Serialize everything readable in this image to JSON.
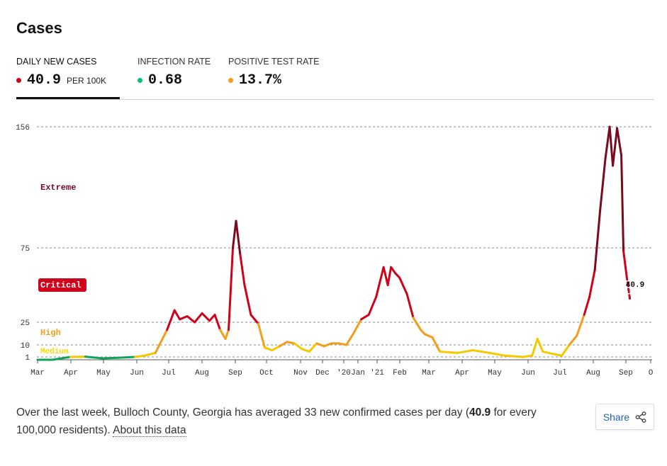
{
  "header": {
    "title": "Cases"
  },
  "tabs": [
    {
      "label": "DAILY NEW CASES",
      "value": "40.9",
      "unit": "PER 100K",
      "dot_color": "#d0021b",
      "active": true
    },
    {
      "label": "INFECTION RATE",
      "value": "0.68",
      "unit": "",
      "dot_color": "#00c474",
      "active": false
    },
    {
      "label": "POSITIVE TEST RATE",
      "value": "13.7%",
      "unit": "",
      "dot_color": "#f29d1b",
      "active": false
    }
  ],
  "chart_data": {
    "type": "line",
    "y_ticks": [
      1,
      10,
      25,
      75,
      156
    ],
    "ylim": [
      0,
      156
    ],
    "x_ticks": [
      "Mar",
      "Apr",
      "May",
      "Jun",
      "Jul",
      "Aug",
      "Sep",
      "Oct",
      "Nov",
      "Dec",
      "'20",
      "Jan",
      "'21",
      "Feb",
      "Mar",
      "Apr",
      "May",
      "Jun",
      "Jul",
      "Aug",
      "Sep",
      "O"
    ],
    "levels": [
      {
        "name": "Extreme",
        "color": "#7a0a1f"
      },
      {
        "name": "Critical",
        "color": "#d0021b"
      },
      {
        "name": "High",
        "color": "#f29d1b"
      },
      {
        "name": "Medium",
        "color": "#ffd700"
      }
    ],
    "last_value_label": "40.9",
    "points": [
      [
        "Mar 1 2020",
        0
      ],
      [
        "Mar 15 2020",
        0
      ],
      [
        "Apr 1 2020",
        1
      ],
      [
        "Apr 15 2020",
        1.2
      ],
      [
        "May 1 2020",
        0.5
      ],
      [
        "May 15 2020",
        0.7
      ],
      [
        "Jun 1 2020",
        1
      ],
      [
        "Jun 10 2020",
        2
      ],
      [
        "Jun 20 2020",
        4
      ],
      [
        "Jul 1 2020",
        20
      ],
      [
        "Jul 8 2020",
        33
      ],
      [
        "Jul 13 2020",
        27
      ],
      [
        "Jul 20 2020",
        29
      ],
      [
        "Jul 27 2020",
        25
      ],
      [
        "Aug 3 2020",
        31
      ],
      [
        "Aug 10 2020",
        26
      ],
      [
        "Aug 15 2020",
        30
      ],
      [
        "Aug 20 2020",
        20
      ],
      [
        "Aug 25 2020",
        14
      ],
      [
        "Aug 28 2020",
        20
      ],
      [
        "Sep 1 2020",
        75
      ],
      [
        "Sep 4 2020",
        93
      ],
      [
        "Sep 8 2020",
        70
      ],
      [
        "Sep 12 2020",
        50
      ],
      [
        "Sep 18 2020",
        30
      ],
      [
        "Sep 25 2020",
        24
      ],
      [
        "Oct 1 2020",
        8
      ],
      [
        "Oct 8 2020",
        6
      ],
      [
        "Oct 15 2020",
        9
      ],
      [
        "Oct 22 2020",
        12
      ],
      [
        "Oct 29 2020",
        11
      ],
      [
        "Nov 5 2020",
        7
      ],
      [
        "Nov 12 2020",
        5
      ],
      [
        "Nov 19 2020",
        11
      ],
      [
        "Nov 26 2020",
        9
      ],
      [
        "Dec 3 2020",
        11
      ],
      [
        "Dec 10 2020",
        11
      ],
      [
        "Dec 17 2020",
        10
      ],
      [
        "Dec 24 2020",
        18
      ],
      [
        "Dec 31 2020",
        27
      ],
      [
        "Jan 7 2021",
        30
      ],
      [
        "Jan 14 2021",
        42
      ],
      [
        "Jan 21 2021",
        62
      ],
      [
        "Jan 25 2021",
        50
      ],
      [
        "Jan 28 2021",
        62
      ],
      [
        "Feb 1 2021",
        58
      ],
      [
        "Feb 5 2021",
        55
      ],
      [
        "Feb 12 2021",
        44
      ],
      [
        "Feb 18 2021",
        28
      ],
      [
        "Feb 25 2021",
        20
      ],
      [
        "Mar 1 2021",
        17
      ],
      [
        "Mar 8 2021",
        15
      ],
      [
        "Mar 15 2021",
        5
      ],
      [
        "Apr 1 2021",
        4
      ],
      [
        "Apr 15 2021",
        6
      ],
      [
        "May 1 2021",
        4
      ],
      [
        "May 15 2021",
        2
      ],
      [
        "Jun 1 2021",
        1
      ],
      [
        "Jun 10 2021",
        2
      ],
      [
        "Jun 15 2021",
        14
      ],
      [
        "Jun 20 2021",
        5
      ],
      [
        "Jul 1 2021",
        3
      ],
      [
        "Jul 8 2021",
        2
      ],
      [
        "Jul 15 2021",
        10
      ],
      [
        "Jul 22 2021",
        16
      ],
      [
        "Jul 29 2021",
        30
      ],
      [
        "Aug 3 2021",
        42
      ],
      [
        "Aug 8 2021",
        60
      ],
      [
        "Aug 13 2021",
        100
      ],
      [
        "Aug 18 2021",
        135
      ],
      [
        "Aug 22 2021",
        156
      ],
      [
        "Aug 25 2021",
        130
      ],
      [
        "Aug 29 2021",
        155
      ],
      [
        "Sep 2 2021",
        137
      ],
      [
        "Sep 4 2021",
        73
      ],
      [
        "Sep 7 2021",
        56
      ],
      [
        "Sep 10 2021",
        40.9
      ]
    ]
  },
  "footer": {
    "description_prefix": "Over the last week, Bulloch County, Georgia has averaged 33 new confirmed cases per day (",
    "description_value": "40.9",
    "description_suffix": " for every 100,000 residents).",
    "about_link": "About this data",
    "share_label": "Share"
  }
}
